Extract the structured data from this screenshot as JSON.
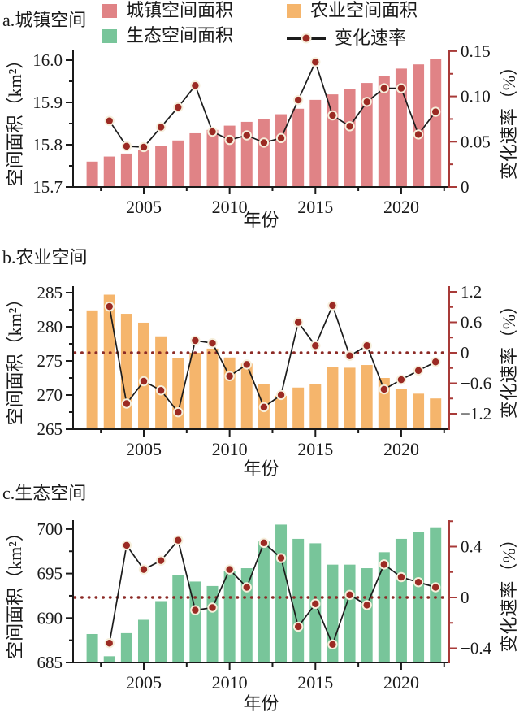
{
  "legend": {
    "items": [
      {
        "label": "城镇空间面积",
        "marker": "square",
        "color": "#e08386"
      },
      {
        "label": "农业空间面积",
        "marker": "square",
        "color": "#f5b56c"
      },
      {
        "label": "生态空间面积",
        "marker": "square",
        "color": "#78c59a"
      },
      {
        "label": "变化速率",
        "marker": "line-dot",
        "color": "#9b2a23"
      }
    ]
  },
  "colors": {
    "urban": "#e08386",
    "agriculture": "#f5b56c",
    "ecology": "#78c59a",
    "rate_dot": "#9b2a23",
    "dot_ring": "#f6efdc",
    "rate_line": "#1c1c1c",
    "right_axis": "#a83a38",
    "zero_dotted": "#8c2a26",
    "axis": "#1a1a1a"
  },
  "chart_data": [
    {
      "id": "a",
      "panel_label": "a.城镇空间",
      "type": "bar+line",
      "bar_series": "城镇空间面积",
      "line_series": "变化速率",
      "categories": [
        2002,
        2003,
        2004,
        2005,
        2006,
        2007,
        2008,
        2009,
        2010,
        2011,
        2012,
        2013,
        2014,
        2015,
        2016,
        2017,
        2018,
        2019,
        2020,
        2021,
        2022
      ],
      "bar_values": [
        15.76,
        15.772,
        15.779,
        15.787,
        15.797,
        15.81,
        15.827,
        15.835,
        15.845,
        15.854,
        15.861,
        15.872,
        15.885,
        15.906,
        15.919,
        15.931,
        15.946,
        15.963,
        15.98,
        15.99,
        16.003
      ],
      "line_x": [
        2003,
        2004,
        2005,
        2006,
        2007,
        2008,
        2009,
        2010,
        2011,
        2012,
        2013,
        2014,
        2015,
        2016,
        2017,
        2018,
        2019,
        2020,
        2021,
        2022
      ],
      "line_values": [
        0.073,
        0.045,
        0.044,
        0.066,
        0.088,
        0.112,
        0.061,
        0.052,
        0.057,
        0.049,
        0.054,
        0.096,
        0.138,
        0.079,
        0.067,
        0.094,
        0.109,
        0.109,
        0.058,
        0.083
      ],
      "left_axis": {
        "title": "空间面积（km²）",
        "range": [
          15.7,
          16.02
        ],
        "ticks": [
          15.7,
          15.8,
          15.9,
          16.0
        ],
        "tick_labels": [
          "15.7",
          "15.8",
          "15.9",
          "16.0"
        ],
        "minor_ticks": [
          15.75,
          15.85,
          15.95
        ]
      },
      "right_axis": {
        "title": "变化速率（%）",
        "range": [
          0,
          0.15
        ],
        "ticks": [
          0,
          0.05,
          0.1,
          0.15
        ],
        "tick_labels": [
          "0",
          "0.05",
          "0.10",
          "0.15"
        ],
        "minor_ticks": [
          0.025,
          0.075,
          0.125
        ]
      },
      "x_axis": {
        "title": "年份",
        "ticks": [
          2005,
          2010,
          2015,
          2020
        ],
        "tick_labels": [
          "2005",
          "2010",
          "2015",
          "2020"
        ],
        "minor_ticks": [
          2002.5,
          2007.5,
          2012.5,
          2017.5,
          2022.5
        ]
      },
      "zero_line": false
    },
    {
      "id": "b",
      "panel_label": "b.农业空间",
      "type": "bar+line",
      "bar_series": "农业空间面积",
      "line_series": "变化速率",
      "categories": [
        2002,
        2003,
        2004,
        2005,
        2006,
        2007,
        2008,
        2009,
        2010,
        2011,
        2012,
        2013,
        2014,
        2015,
        2016,
        2017,
        2018,
        2019,
        2020,
        2021,
        2022
      ],
      "bar_values": [
        282.4,
        284.7,
        281.9,
        280.6,
        278.6,
        275.4,
        276.2,
        276.8,
        275.5,
        274.6,
        271.6,
        269.9,
        271.1,
        271.6,
        274.1,
        274.0,
        274.4,
        272.5,
        270.9,
        270.2,
        269.5
      ],
      "line_x": [
        2003,
        2004,
        2005,
        2006,
        2007,
        2008,
        2009,
        2010,
        2011,
        2012,
        2013,
        2014,
        2015,
        2016,
        2017,
        2018,
        2019,
        2020,
        2021,
        2022
      ],
      "line_values": [
        0.91,
        -1.0,
        -0.56,
        -0.74,
        -1.17,
        0.24,
        0.19,
        -0.46,
        -0.23,
        -1.07,
        -0.83,
        0.6,
        0.14,
        0.93,
        -0.06,
        0.14,
        -0.72,
        -0.53,
        -0.35,
        -0.18
      ],
      "left_axis": {
        "title": "空间面积（km²）",
        "range": [
          265,
          286
        ],
        "ticks": [
          265,
          270,
          275,
          280,
          285
        ],
        "tick_labels": [
          "265",
          "270",
          "275",
          "280",
          "285"
        ],
        "minor_ticks": [
          267.5,
          272.5,
          277.5,
          282.5
        ]
      },
      "right_axis": {
        "title": "变化速率（%）",
        "range": [
          -1.5,
          1.26
        ],
        "ticks": [
          -1.2,
          -0.6,
          0,
          0.6,
          1.2
        ],
        "tick_labels": [
          "−1.2",
          "−0.6",
          "0",
          "0.6",
          "1.2"
        ],
        "minor_ticks": [
          -0.9,
          -0.3,
          0.3,
          0.9
        ]
      },
      "x_axis": {
        "title": "年份",
        "ticks": [
          2005,
          2010,
          2015,
          2020
        ],
        "tick_labels": [
          "2005",
          "2010",
          "2015",
          "2020"
        ],
        "minor_ticks": [
          2002.5,
          2007.5,
          2012.5,
          2017.5,
          2022.5
        ]
      },
      "zero_line": true
    },
    {
      "id": "c",
      "panel_label": "c.生态空间",
      "type": "bar+line",
      "bar_series": "生态空间面积",
      "line_series": "变化速率",
      "categories": [
        2002,
        2003,
        2004,
        2005,
        2006,
        2007,
        2008,
        2009,
        2010,
        2011,
        2012,
        2013,
        2014,
        2015,
        2016,
        2017,
        2018,
        2019,
        2020,
        2021,
        2022
      ],
      "bar_values": [
        688.2,
        685.7,
        688.3,
        689.8,
        691.9,
        694.8,
        694.1,
        693.6,
        695.3,
        695.6,
        698.6,
        700.5,
        698.9,
        698.4,
        696.0,
        696.0,
        695.6,
        697.4,
        698.9,
        699.7,
        700.2
      ],
      "line_x": [
        2003,
        2004,
        2005,
        2006,
        2007,
        2008,
        2009,
        2010,
        2011,
        2012,
        2013,
        2014,
        2015,
        2016,
        2017,
        2018,
        2019,
        2020,
        2021,
        2022
      ],
      "line_values": [
        -0.36,
        0.41,
        0.22,
        0.29,
        0.45,
        -0.1,
        -0.08,
        0.22,
        0.08,
        0.43,
        0.31,
        -0.23,
        -0.05,
        -0.37,
        0.02,
        -0.06,
        0.26,
        0.16,
        0.12,
        0.08
      ],
      "left_axis": {
        "title": "空间面积（km²）",
        "range": [
          685,
          701
        ],
        "ticks": [
          685,
          690,
          695,
          700
        ],
        "tick_labels": [
          "685",
          "690",
          "695",
          "700"
        ],
        "minor_ticks": [
          687.5,
          692.5,
          697.5
        ]
      },
      "right_axis": {
        "title": "变化速率（%）",
        "range": [
          -0.51,
          0.61
        ],
        "ticks": [
          -0.4,
          0,
          0.4
        ],
        "tick_labels": [
          "−0.4",
          "0",
          "0.4"
        ],
        "minor_ticks": [
          -0.2,
          0.2,
          0.6
        ]
      },
      "x_axis": {
        "title": "年份",
        "ticks": [
          2005,
          2010,
          2015,
          2020
        ],
        "tick_labels": [
          "2005",
          "2010",
          "2015",
          "2020"
        ],
        "minor_ticks": [
          2002.5,
          2007.5,
          2012.5,
          2017.5,
          2022.5
        ]
      },
      "zero_line": true
    }
  ]
}
